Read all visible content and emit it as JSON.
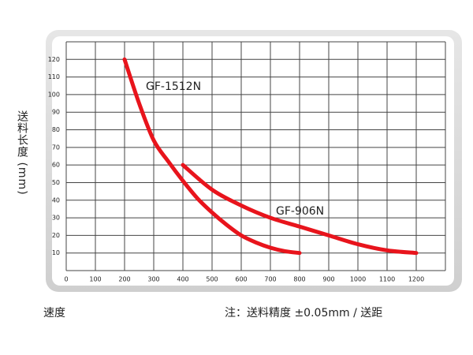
{
  "chart_data": {
    "type": "line",
    "series": [
      {
        "name": "GF-1512N",
        "color": "#e8141c",
        "x": [
          200,
          250,
          300,
          350,
          400,
          450,
          500,
          550,
          600,
          650,
          700,
          750,
          800
        ],
        "values": [
          120,
          95,
          74,
          62,
          51,
          41,
          33,
          26,
          20,
          16,
          13,
          11,
          10
        ]
      },
      {
        "name": "GF-906N",
        "color": "#e8141c",
        "x": [
          400,
          500,
          600,
          700,
          800,
          900,
          1000,
          1100,
          1200
        ],
        "values": [
          60,
          46,
          37,
          30,
          25,
          20,
          15,
          11.5,
          10
        ]
      }
    ],
    "xlim": [
      0,
      1300
    ],
    "ylim": [
      0,
      130
    ],
    "xticks": [
      0,
      100,
      200,
      300,
      400,
      500,
      600,
      700,
      800,
      900,
      1000,
      1100,
      1200
    ],
    "yticks": [
      10,
      20,
      30,
      40,
      50,
      60,
      70,
      80,
      90,
      100,
      110,
      120
    ],
    "grid": true,
    "y_label": "送料长度 (mm)",
    "x_label": "速度",
    "note": "注：送料精度 ±0.05mm / 送距"
  }
}
